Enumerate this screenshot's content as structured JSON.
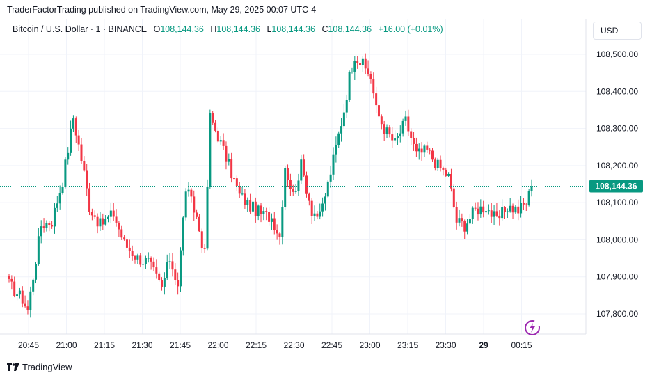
{
  "header": {
    "published": "TraderFactorTrading published on TradingView.com, May 29, 2025 00:07 UTC-4"
  },
  "legend": {
    "symbol": "Bitcoin / U.S. Dollar · 1 · BINANCE",
    "o_label": "O",
    "o_value": "108,144.36",
    "h_label": "H",
    "h_value": "108,144.36",
    "l_label": "L",
    "l_value": "108,144.36",
    "c_label": "C",
    "c_value": "108,144.36",
    "change": "+16.00 (+0.01%)"
  },
  "currency": "USD",
  "price_label": "108,144.36",
  "footer": {
    "brand": "TradingView"
  },
  "colors": {
    "up": "#089981",
    "down": "#f23645",
    "grid": "#f0f3fa",
    "text": "#131722"
  },
  "chart_data": {
    "type": "candlestick",
    "y_ticks": [
      107800,
      107900,
      108000,
      108100,
      108200,
      108300,
      108400,
      108500
    ],
    "y_tick_labels": [
      "107,800.00",
      "107,900.00",
      "108,000.00",
      "108,100.00",
      "108,200.00",
      "108,300.00",
      "108,400.00",
      "108,500.00"
    ],
    "ylim": [
      107750,
      108560
    ],
    "x_ticks": [
      "20:45",
      "21:00",
      "21:15",
      "21:30",
      "21:45",
      "22:00",
      "22:15",
      "22:30",
      "22:45",
      "23:00",
      "23:15",
      "23:30",
      "29",
      "00:15"
    ],
    "last_price": 108144.36,
    "anchors": [
      {
        "i": 0,
        "v": 107880
      },
      {
        "i": 5,
        "v": 107840
      },
      {
        "i": 7,
        "v": 107810
      },
      {
        "i": 12,
        "v": 108040
      },
      {
        "i": 16,
        "v": 108050
      },
      {
        "i": 20,
        "v": 108160
      },
      {
        "i": 24,
        "v": 108330
      },
      {
        "i": 28,
        "v": 108180
      },
      {
        "i": 30,
        "v": 108090
      },
      {
        "i": 34,
        "v": 108040
      },
      {
        "i": 39,
        "v": 108070
      },
      {
        "i": 43,
        "v": 107990
      },
      {
        "i": 48,
        "v": 107950
      },
      {
        "i": 52,
        "v": 107940
      },
      {
        "i": 57,
        "v": 107870
      },
      {
        "i": 60,
        "v": 107950
      },
      {
        "i": 63,
        "v": 107880
      },
      {
        "i": 66,
        "v": 108140
      },
      {
        "i": 70,
        "v": 108060
      },
      {
        "i": 73,
        "v": 107960
      },
      {
        "i": 75,
        "v": 108330
      },
      {
        "i": 78,
        "v": 108280
      },
      {
        "i": 82,
        "v": 108200
      },
      {
        "i": 86,
        "v": 108120
      },
      {
        "i": 90,
        "v": 108090
      },
      {
        "i": 94,
        "v": 108070
      },
      {
        "i": 98,
        "v": 108060
      },
      {
        "i": 101,
        "v": 108010
      },
      {
        "i": 103,
        "v": 108200
      },
      {
        "i": 106,
        "v": 108120
      },
      {
        "i": 109,
        "v": 108200
      },
      {
        "i": 113,
        "v": 108080
      },
      {
        "i": 116,
        "v": 108060
      },
      {
        "i": 119,
        "v": 108150
      },
      {
        "i": 122,
        "v": 108250
      },
      {
        "i": 125,
        "v": 108350
      },
      {
        "i": 127,
        "v": 108440
      },
      {
        "i": 129,
        "v": 108500
      },
      {
        "i": 132,
        "v": 108470
      },
      {
        "i": 135,
        "v": 108440
      },
      {
        "i": 137,
        "v": 108350
      },
      {
        "i": 140,
        "v": 108300
      },
      {
        "i": 144,
        "v": 108260
      },
      {
        "i": 148,
        "v": 108320
      },
      {
        "i": 152,
        "v": 108230
      },
      {
        "i": 156,
        "v": 108240
      },
      {
        "i": 160,
        "v": 108200
      },
      {
        "i": 164,
        "v": 108170
      },
      {
        "i": 167,
        "v": 108050
      },
      {
        "i": 170,
        "v": 108040
      },
      {
        "i": 174,
        "v": 108080
      },
      {
        "i": 178,
        "v": 108090
      },
      {
        "i": 182,
        "v": 108050
      },
      {
        "i": 186,
        "v": 108090
      },
      {
        "i": 190,
        "v": 108080
      },
      {
        "i": 193,
        "v": 108100
      },
      {
        "i": 195,
        "v": 108144
      }
    ]
  }
}
